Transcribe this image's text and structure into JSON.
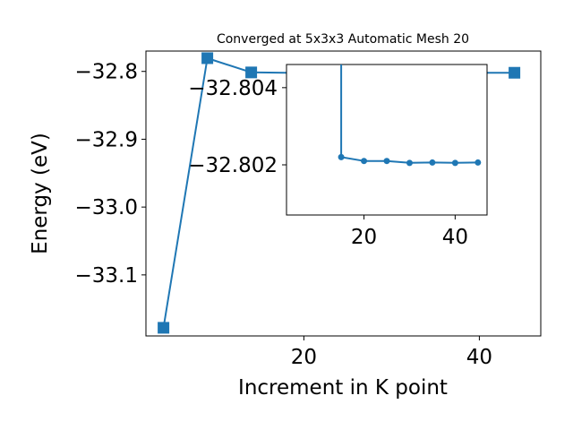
{
  "chart_data": [
    {
      "type": "line",
      "title": "Converged at 5x3x3 Automatic Mesh 20",
      "xlabel": "Increment in K point",
      "ylabel": "Energy (eV)",
      "xlim": [
        2,
        47
      ],
      "ylim": [
        -33.19,
        -32.77
      ],
      "x_ticks": [
        20,
        40
      ],
      "x_tick_labels": [
        "20",
        "40"
      ],
      "y_ticks": [
        -32.8,
        -32.9,
        -33.0,
        -33.1
      ],
      "y_tick_labels": [
        "−32.8",
        "−32.9",
        "−33.0",
        "−33.1"
      ],
      "grid": false,
      "color": "#1f77b4",
      "marker": "square",
      "series": [
        {
          "x": [
            4,
            9,
            14,
            19,
            24,
            29,
            34,
            39,
            44
          ],
          "y": [
            -33.178,
            -32.7805,
            -32.8015,
            -32.8022,
            -32.8021,
            -32.8021,
            -32.8021,
            -32.8021,
            -32.802
          ]
        }
      ]
    },
    {
      "type": "line",
      "role": "inset",
      "xlim": [
        3,
        47
      ],
      "ylim": [
        -32.8007,
        -32.8046
      ],
      "x_ticks": [
        20,
        40
      ],
      "x_tick_labels": [
        "20",
        "40"
      ],
      "y_ticks": [
        -32.804,
        -32.802
      ],
      "y_tick_labels": [
        "−32.804",
        "−32.802"
      ],
      "grid": false,
      "color": "#1f77b4",
      "marker": "circle",
      "series": [
        {
          "x": [
            15,
            20,
            25,
            30,
            35,
            40,
            45
          ],
          "y": [
            -32.8022,
            -32.8021,
            -32.8021,
            -32.80205,
            -32.80206,
            -32.80205,
            -32.80206
          ],
          "lead_in_from_y": -32.8046
        }
      ]
    }
  ]
}
